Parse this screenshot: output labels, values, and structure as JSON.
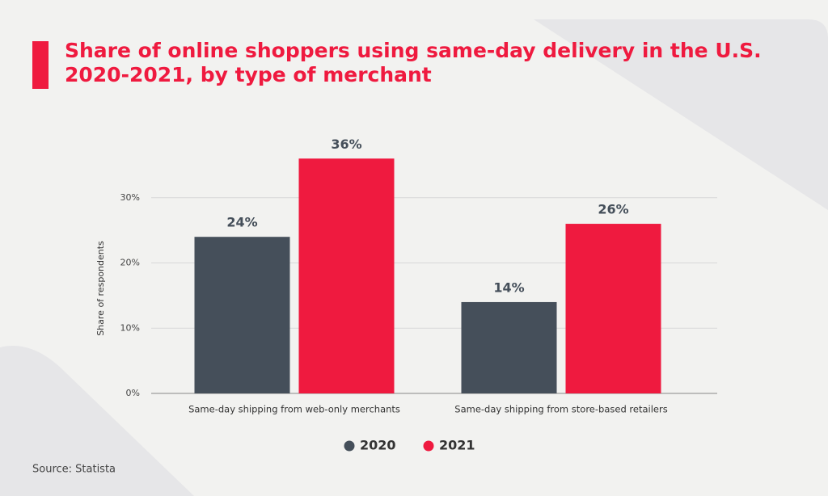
{
  "chart_data": {
    "type": "bar",
    "title": "Share of online shoppers using same-day delivery in the U.S. 2020-2021, by type of merchant",
    "y_label": "Share of respondents",
    "source": "Source: Statista",
    "categories": [
      "Same-day shipping from web-only merchants",
      "Same-day shipping from store-based retailers"
    ],
    "series": [
      {
        "name": "2020",
        "color": "#454f5a",
        "values": [
          24,
          14
        ],
        "value_labels": [
          "24%",
          "14%"
        ]
      },
      {
        "name": "2021",
        "color": "#ef1a3f",
        "values": [
          36,
          26
        ],
        "value_labels": [
          "36%",
          "26%"
        ]
      }
    ],
    "ylim": [
      0,
      40
    ],
    "yticks": [
      {
        "value": 0,
        "label": "0%"
      },
      {
        "value": 10,
        "label": "10%"
      },
      {
        "value": 20,
        "label": "20%"
      },
      {
        "value": 30,
        "label": "30%"
      }
    ],
    "grid": true,
    "legend": "bottom"
  }
}
